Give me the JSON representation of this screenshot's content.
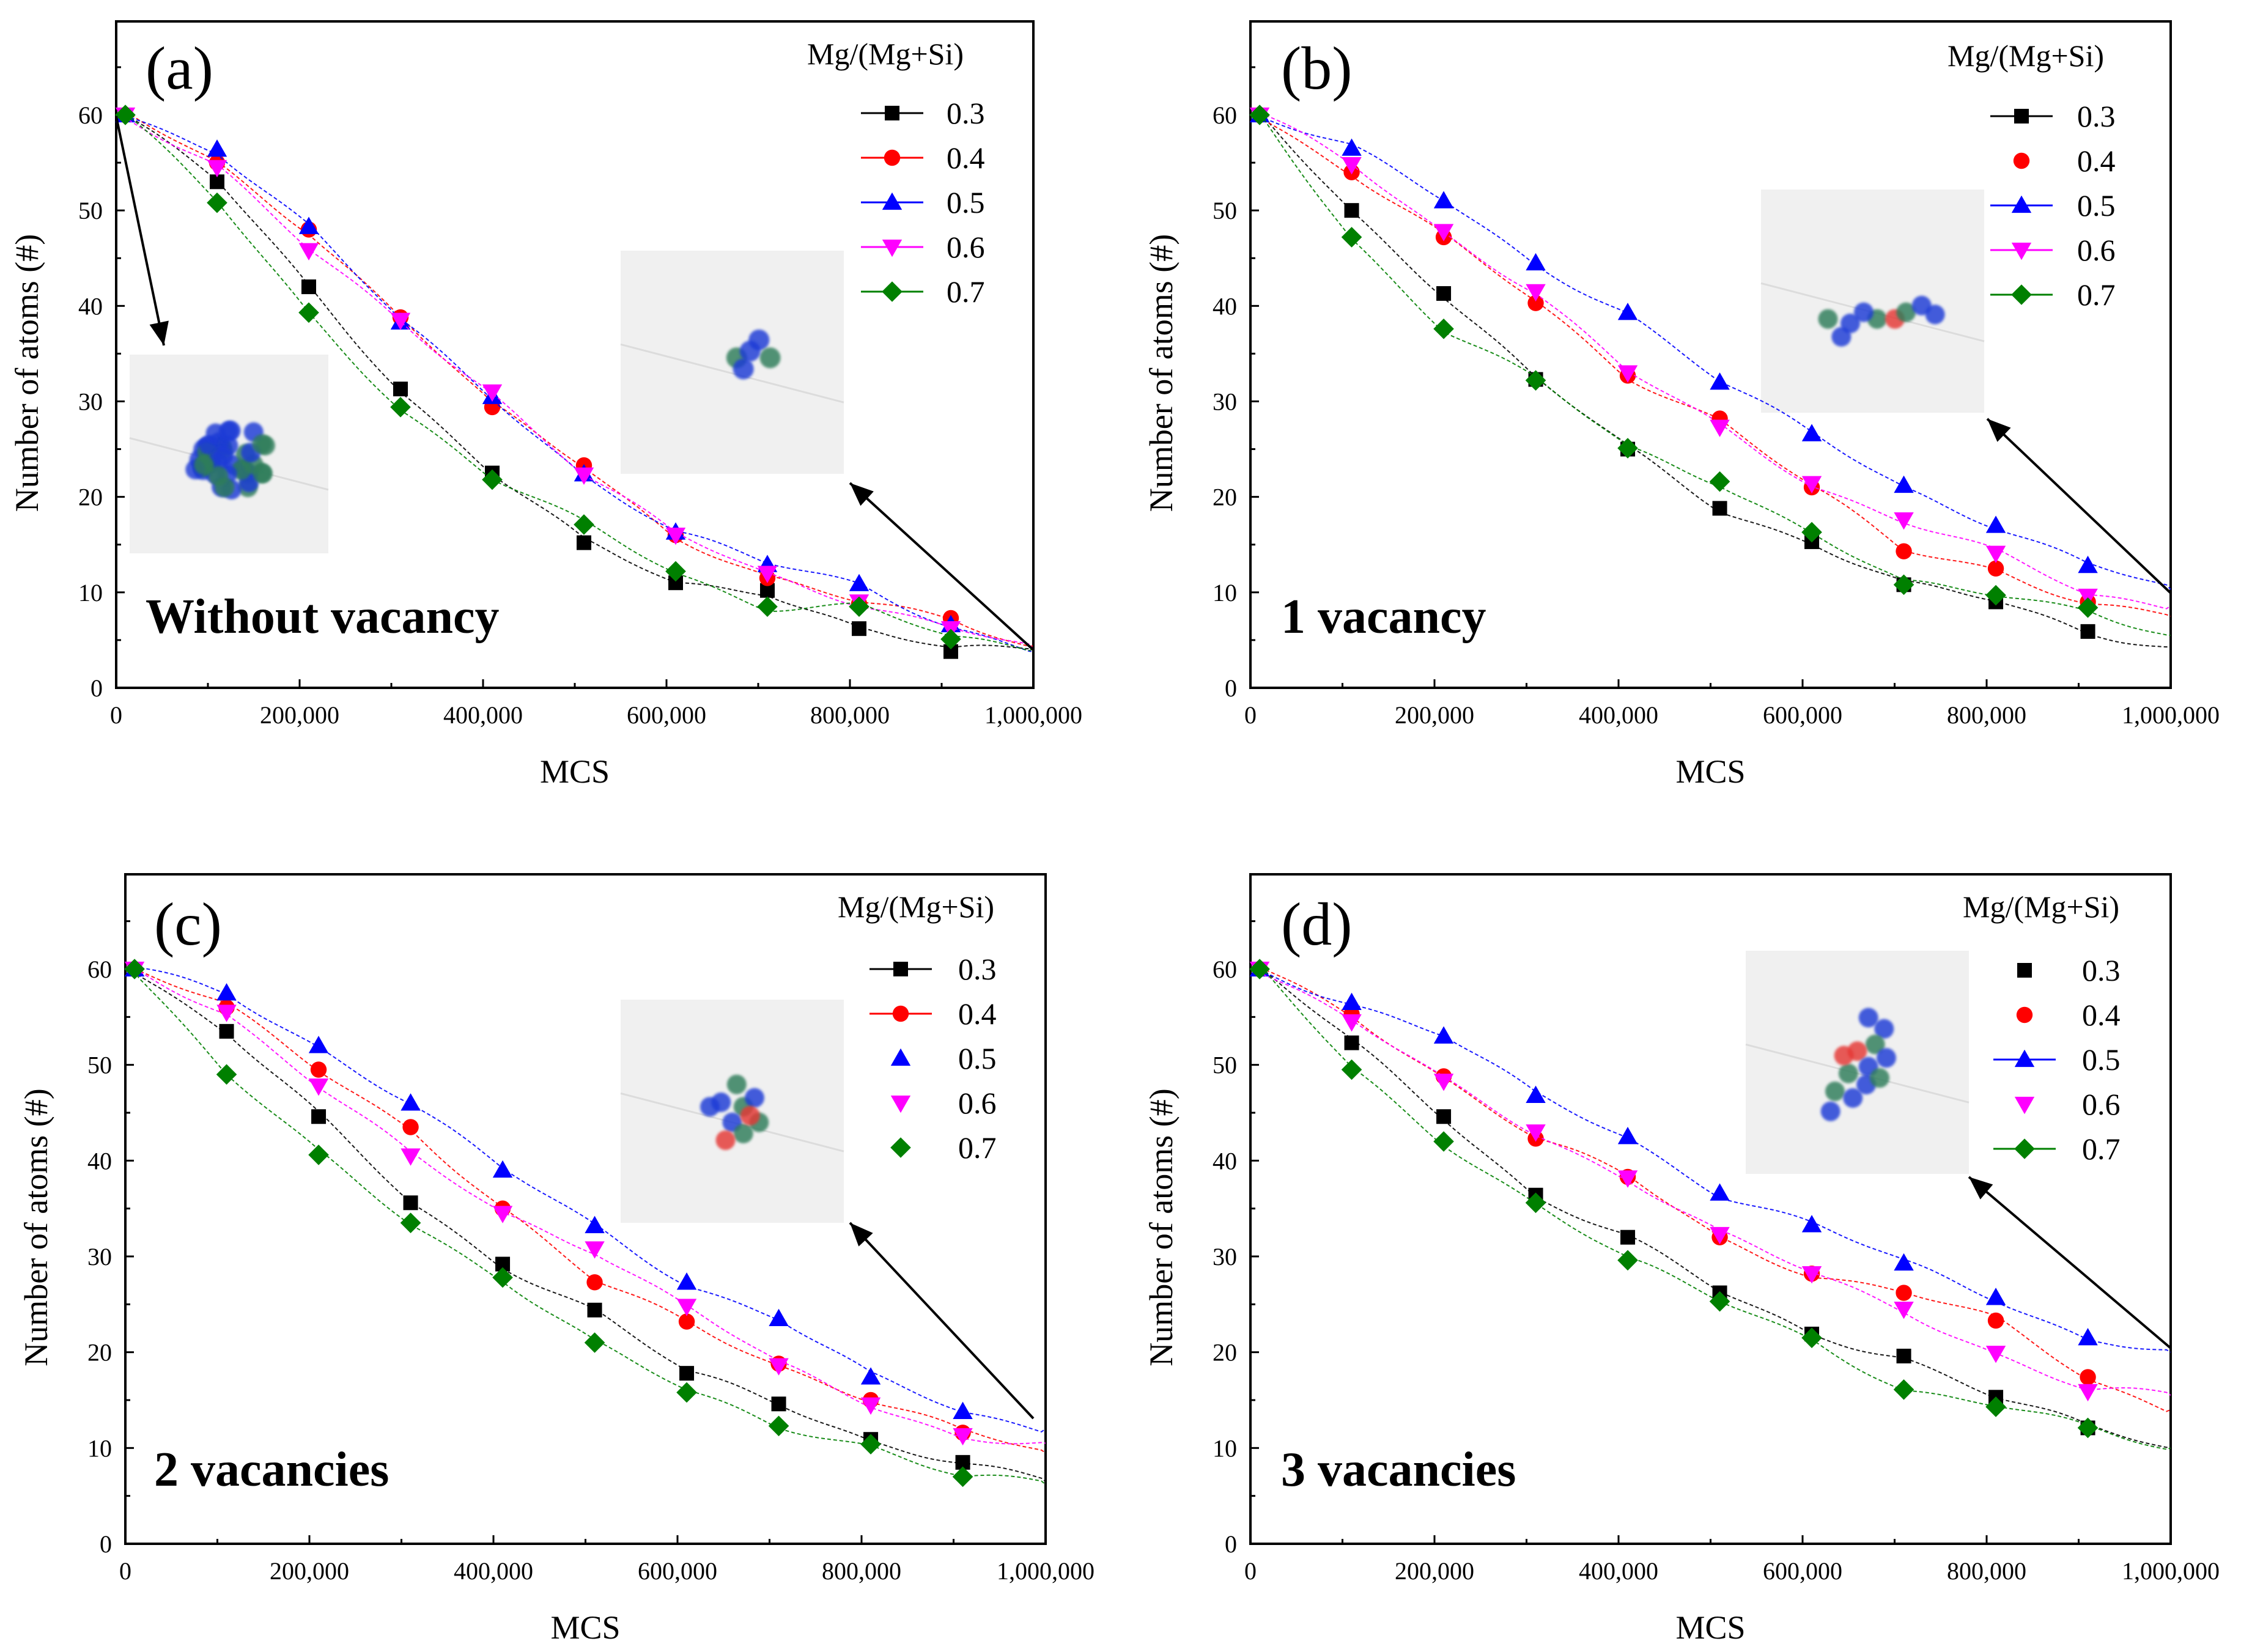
{
  "figure": {
    "panels": [
      {
        "label": "(a)",
        "condition": "Without vacancy",
        "legend_title": "Mg/(Mg+Si)",
        "series_lines": [
          true,
          true,
          true,
          true,
          true
        ],
        "end": [
          4.2,
          4.4,
          3.8,
          4.0,
          4.1
        ]
      },
      {
        "label": "(b)",
        "condition": "1 vacancy",
        "legend_title": "Mg/(Mg+Si)",
        "series_lines": [
          true,
          false,
          true,
          true,
          true
        ],
        "end": [
          4.4,
          7.5,
          10.3,
          8.6,
          5.5
        ]
      },
      {
        "label": "(c)",
        "condition": "2 vacancies",
        "legend_title": "Mg/(Mg+Si)",
        "series_lines": [
          true,
          true,
          false,
          false,
          false
        ],
        "end": [
          6.5,
          9.5,
          12.0,
          10.5,
          6.2
        ]
      },
      {
        "label": "(d)",
        "condition": "3 vacancies",
        "legend_title": "Mg/(Mg+Si)",
        "series_lines": [
          false,
          false,
          true,
          false,
          true
        ],
        "end": [
          10.0,
          14.0,
          20.0,
          15.5,
          10.0
        ]
      }
    ]
  },
  "chart_data": [
    {
      "type": "line",
      "title": "(a) Without vacancy",
      "xlabel": "MCS",
      "ylabel": "Number of atoms (#)",
      "xlim": [
        0,
        1000000
      ],
      "ylim": [
        0,
        70
      ],
      "xticks": [
        "0",
        "200,000",
        "400,000",
        "600,000",
        "800,000",
        "1,000,000"
      ],
      "yticks": [
        "0",
        "10",
        "20",
        "30",
        "40",
        "50",
        "60"
      ],
      "legend_title": "Mg/(Mg+Si)",
      "x": [
        10000,
        110000,
        210000,
        310000,
        410000,
        510000,
        610000,
        710000,
        810000,
        910000
      ],
      "series": [
        {
          "name": "0.3",
          "color": "#000000",
          "marker": "square",
          "values": [
            60,
            53,
            42,
            31.3,
            22.5,
            15.2,
            11,
            10.2,
            6.2,
            3.8
          ]
        },
        {
          "name": "0.4",
          "color": "#ff0000",
          "marker": "circle",
          "values": [
            60,
            55,
            48,
            38.8,
            29.4,
            23.3,
            16,
            11.5,
            8.8,
            7.3
          ]
        },
        {
          "name": "0.5",
          "color": "#0000ff",
          "marker": "triangle-up",
          "values": [
            60,
            56.4,
            48.3,
            38.3,
            30.5,
            22.4,
            16.3,
            12.9,
            10.9,
            6.6
          ]
        },
        {
          "name": "0.6",
          "color": "#ff00ff",
          "marker": "triangle-down",
          "values": [
            60,
            54.5,
            45.8,
            38.5,
            31,
            22.3,
            16,
            12,
            9,
            6.2
          ]
        },
        {
          "name": "0.7",
          "color": "#008000",
          "marker": "diamond",
          "values": [
            60,
            50.8,
            39.3,
            29.4,
            21.8,
            17.1,
            12.2,
            8.5,
            8.5,
            5.1
          ]
        }
      ]
    },
    {
      "type": "line",
      "title": "(b) 1 vacancy",
      "xlabel": "MCS",
      "ylabel": "Number of atoms (#)",
      "xlim": [
        0,
        1000000
      ],
      "ylim": [
        0,
        70
      ],
      "xticks": [
        "0",
        "200,000",
        "400,000",
        "600,000",
        "800,000",
        "1,000,000"
      ],
      "yticks": [
        "0",
        "10",
        "20",
        "30",
        "40",
        "50",
        "60"
      ],
      "legend_title": "Mg/(Mg+Si)",
      "x": [
        10000,
        110000,
        210000,
        310000,
        410000,
        510000,
        610000,
        710000,
        810000,
        910000
      ],
      "series": [
        {
          "name": "0.3",
          "color": "#000000",
          "marker": "square",
          "values": [
            60,
            50,
            41.3,
            32.3,
            25,
            18.8,
            15.3,
            10.8,
            9,
            5.9
          ]
        },
        {
          "name": "0.4",
          "color": "#ff0000",
          "marker": "circle",
          "values": [
            60,
            54,
            47.2,
            40.3,
            32.7,
            28.2,
            21,
            14.3,
            12.5,
            9
          ]
        },
        {
          "name": "0.5",
          "color": "#0000ff",
          "marker": "triangle-up",
          "values": [
            60,
            56.5,
            51,
            44.5,
            39.3,
            32,
            26.6,
            21.2,
            17,
            12.8
          ]
        },
        {
          "name": "0.6",
          "color": "#ff00ff",
          "marker": "triangle-down",
          "values": [
            60,
            54.8,
            47.8,
            41.5,
            33,
            27.3,
            21.4,
            17.6,
            14.1,
            9.6
          ]
        },
        {
          "name": "0.7",
          "color": "#008000",
          "marker": "diamond",
          "values": [
            60,
            47.2,
            37.6,
            32.2,
            25.1,
            21.6,
            16.3,
            10.8,
            9.7,
            8.4
          ]
        }
      ]
    },
    {
      "type": "line",
      "title": "(c) 2 vacancies",
      "xlabel": "MCS",
      "ylabel": "Number of atoms (#)",
      "xlim": [
        0,
        1000000
      ],
      "ylim": [
        0,
        70
      ],
      "xticks": [
        "0",
        "200,000",
        "400,000",
        "600,000",
        "800,000",
        "1,000,000"
      ],
      "yticks": [
        "0",
        "10",
        "20",
        "30",
        "40",
        "50",
        "60"
      ],
      "legend_title": "Mg/(Mg+Si)",
      "x": [
        10000,
        110000,
        210000,
        310000,
        410000,
        510000,
        610000,
        710000,
        810000,
        910000
      ],
      "series": [
        {
          "name": "0.3",
          "color": "#000000",
          "marker": "square",
          "values": [
            60,
            53.5,
            44.6,
            35.6,
            29.2,
            24.4,
            17.8,
            14.6,
            10.9,
            8.5
          ]
        },
        {
          "name": "0.4",
          "color": "#ff0000",
          "marker": "circle",
          "values": [
            60,
            56,
            49.5,
            43.5,
            35,
            27.3,
            23.2,
            18.8,
            15,
            11.6
          ]
        },
        {
          "name": "0.5",
          "color": "#0000ff",
          "marker": "triangle-up",
          "values": [
            60,
            57.5,
            52,
            46,
            39,
            33.2,
            27.3,
            23.5,
            17.4,
            13.8
          ]
        },
        {
          "name": "0.6",
          "color": "#ff00ff",
          "marker": "triangle-down",
          "values": [
            60,
            55.5,
            47.8,
            40.5,
            34.5,
            30.8,
            24.8,
            18.6,
            14.5,
            11.3
          ]
        },
        {
          "name": "0.7",
          "color": "#008000",
          "marker": "diamond",
          "values": [
            60,
            49,
            40.6,
            33.5,
            27.8,
            21,
            15.8,
            12.3,
            10.4,
            7
          ]
        }
      ]
    },
    {
      "type": "line",
      "title": "(d) 3 vacancies",
      "xlabel": "MCS",
      "ylabel": "Number of atoms (#)",
      "xlim": [
        0,
        1000000
      ],
      "ylim": [
        0,
        70
      ],
      "xticks": [
        "0",
        "200,000",
        "400,000",
        "600,000",
        "800,000",
        "1,000,000"
      ],
      "yticks": [
        "0",
        "10",
        "20",
        "30",
        "40",
        "50",
        "60"
      ],
      "legend_title": "Mg/(Mg+Si)",
      "x": [
        10000,
        110000,
        210000,
        310000,
        410000,
        510000,
        610000,
        710000,
        810000,
        910000
      ],
      "series": [
        {
          "name": "0.3",
          "color": "#000000",
          "marker": "square",
          "values": [
            60,
            52.3,
            44.6,
            36.4,
            32,
            26.2,
            21.9,
            19.6,
            15.3,
            12.1
          ]
        },
        {
          "name": "0.4",
          "color": "#ff0000",
          "marker": "circle",
          "values": [
            60,
            55.3,
            48.8,
            42.3,
            38.3,
            32,
            28.2,
            26.2,
            23.3,
            17.4
          ]
        },
        {
          "name": "0.5",
          "color": "#0000ff",
          "marker": "triangle-up",
          "values": [
            60,
            56.5,
            53,
            46.8,
            42.5,
            36.6,
            33.3,
            29.3,
            25.7,
            21.5
          ]
        },
        {
          "name": "0.6",
          "color": "#ff00ff",
          "marker": "triangle-down",
          "values": [
            60,
            54.5,
            48.3,
            43,
            38.2,
            32.3,
            28.2,
            24.5,
            19.9,
            15.9
          ]
        },
        {
          "name": "0.7",
          "color": "#008000",
          "marker": "diamond",
          "values": [
            60,
            49.5,
            42,
            35.6,
            29.6,
            25.3,
            21.5,
            16.1,
            14.3,
            12.1
          ]
        }
      ]
    }
  ]
}
